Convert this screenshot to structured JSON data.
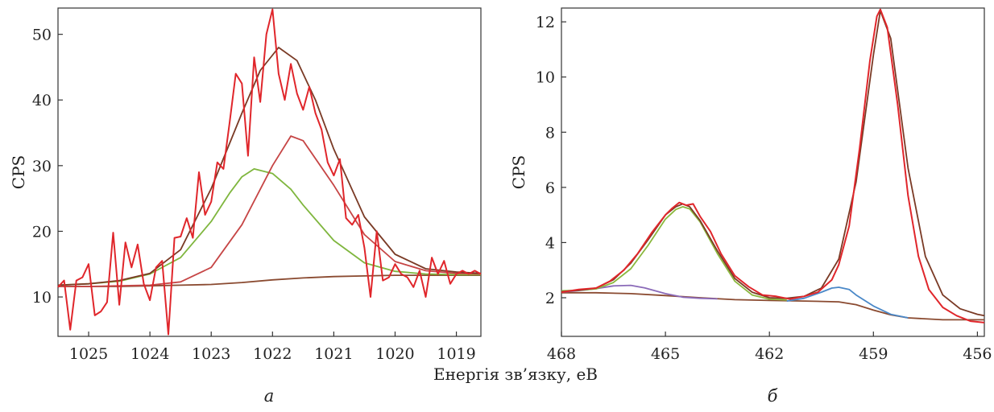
{
  "shared_xlabel": "Енергія зв’язку, еВ",
  "chart_data": [
    {
      "type": "line",
      "panel_label": "а",
      "xlabel": "",
      "ylabel": "CPS",
      "xlim": [
        1025.5,
        1018.6
      ],
      "ylim": [
        4,
        54
      ],
      "x_reversed": true,
      "xticks": [
        1025,
        1024,
        1023,
        1022,
        1021,
        1020,
        1019
      ],
      "yticks": [
        10,
        20,
        30,
        40,
        50
      ],
      "series": [
        {
          "color": "#8a4a30",
          "x": [
            1025.5,
            1025.0,
            1024.5,
            1024.0,
            1023.5,
            1023.0,
            1022.5,
            1022.0,
            1021.5,
            1021.0,
            1020.5,
            1020.0,
            1019.5,
            1019.0,
            1018.6
          ],
          "y": [
            11.6,
            11.6,
            11.6,
            11.7,
            11.8,
            11.9,
            12.2,
            12.6,
            12.9,
            13.1,
            13.2,
            13.3,
            13.3,
            13.3,
            13.3
          ]
        },
        {
          "color": "#7fb63e",
          "x": [
            1025.5,
            1025.0,
            1024.5,
            1024.0,
            1023.5,
            1023.0,
            1022.7,
            1022.5,
            1022.3,
            1022.0,
            1021.7,
            1021.5,
            1021.0,
            1020.5,
            1020.0,
            1019.5,
            1019.0,
            1018.6
          ],
          "y": [
            11.8,
            12.0,
            12.4,
            13.5,
            16.0,
            21.5,
            25.8,
            28.3,
            29.5,
            28.8,
            26.4,
            24.0,
            18.6,
            15.2,
            13.9,
            13.5,
            13.4,
            13.4
          ]
        },
        {
          "color": "#c64545",
          "x": [
            1025.5,
            1025.0,
            1024.5,
            1024.0,
            1023.5,
            1023.0,
            1022.5,
            1022.0,
            1021.7,
            1021.5,
            1021.0,
            1020.5,
            1020.0,
            1019.5,
            1019.0,
            1018.6
          ],
          "y": [
            11.6,
            11.6,
            11.7,
            11.8,
            12.3,
            14.5,
            21.0,
            30.0,
            34.5,
            33.8,
            27.0,
            19.5,
            15.4,
            14.0,
            13.6,
            13.5
          ]
        },
        {
          "color": "#7a3a25",
          "x": [
            1025.5,
            1025.0,
            1024.5,
            1024.0,
            1023.5,
            1023.0,
            1022.5,
            1022.2,
            1021.9,
            1021.6,
            1021.3,
            1021.0,
            1020.5,
            1020.0,
            1019.5,
            1019.0,
            1018.6
          ],
          "y": [
            11.8,
            12.0,
            12.5,
            13.6,
            17.2,
            26.5,
            38.0,
            44.5,
            48.0,
            46.0,
            40.0,
            32.5,
            22.2,
            16.5,
            14.3,
            13.8,
            13.6
          ]
        },
        {
          "color": "#e0262b",
          "x": [
            1025.5,
            1025.4,
            1025.3,
            1025.2,
            1025.1,
            1025.0,
            1024.9,
            1024.8,
            1024.7,
            1024.6,
            1024.5,
            1024.4,
            1024.3,
            1024.2,
            1024.1,
            1024.0,
            1023.9,
            1023.8,
            1023.7,
            1023.6,
            1023.5,
            1023.4,
            1023.3,
            1023.2,
            1023.1,
            1023.0,
            1022.9,
            1022.8,
            1022.7,
            1022.6,
            1022.5,
            1022.4,
            1022.3,
            1022.2,
            1022.1,
            1022.0,
            1021.9,
            1021.8,
            1021.7,
            1021.6,
            1021.5,
            1021.4,
            1021.3,
            1021.2,
            1021.1,
            1021.0,
            1020.9,
            1020.8,
            1020.7,
            1020.6,
            1020.5,
            1020.4,
            1020.3,
            1020.2,
            1020.1,
            1020.0,
            1019.9,
            1019.8,
            1019.7,
            1019.6,
            1019.5,
            1019.4,
            1019.3,
            1019.2,
            1019.1,
            1019.0,
            1018.9,
            1018.8,
            1018.7,
            1018.6
          ],
          "y": [
            11.5,
            12.5,
            5.0,
            12.5,
            13.0,
            15.0,
            7.2,
            7.8,
            9.2,
            19.8,
            8.8,
            18.3,
            14.5,
            18.0,
            12.0,
            9.5,
            14.5,
            15.5,
            4.3,
            19.0,
            19.2,
            22.0,
            19.0,
            29.0,
            22.5,
            24.5,
            30.5,
            29.5,
            36.5,
            44.0,
            42.5,
            31.5,
            46.5,
            39.7,
            50.0,
            53.8,
            44.0,
            40.0,
            45.5,
            41.0,
            38.5,
            42.0,
            38.0,
            35.5,
            30.5,
            28.5,
            31.0,
            22.0,
            21.0,
            22.5,
            17.5,
            10.0,
            20.0,
            12.5,
            13.0,
            15.0,
            13.5,
            13.0,
            11.5,
            14.0,
            10.0,
            16.0,
            13.5,
            15.5,
            12.0,
            13.5,
            14.0,
            13.5,
            14.0,
            13.5
          ]
        }
      ]
    },
    {
      "type": "line",
      "panel_label": "б",
      "xlabel": "",
      "ylabel": "CPS",
      "xlim": [
        468,
        455.8
      ],
      "ylim": [
        0.6,
        12.5
      ],
      "x_reversed": true,
      "xticks": [
        468,
        465,
        462,
        459,
        456
      ],
      "yticks": [
        2,
        4,
        6,
        8,
        10,
        12
      ],
      "series": [
        {
          "color": "#8a4a30",
          "x": [
            468,
            467,
            466,
            465,
            464,
            463,
            462,
            461,
            460,
            459.5,
            459,
            458.5,
            458,
            457,
            456,
            455.8
          ],
          "y": [
            2.18,
            2.18,
            2.15,
            2.08,
            2.0,
            1.93,
            1.9,
            1.88,
            1.85,
            1.75,
            1.55,
            1.38,
            1.27,
            1.2,
            1.2,
            1.2
          ]
        },
        {
          "color": "#8a6ab8",
          "x": [
            468,
            467.5,
            467,
            466.5,
            466,
            465.6,
            465,
            464.5,
            464,
            463.5
          ],
          "y": [
            2.2,
            2.26,
            2.33,
            2.43,
            2.45,
            2.36,
            2.15,
            2.02,
            1.98,
            1.96
          ]
        },
        {
          "color": "#4a88c8",
          "x": [
            461.5,
            461,
            460.5,
            460.2,
            460,
            459.7,
            459.5,
            459,
            458.5,
            458
          ],
          "y": [
            1.88,
            1.98,
            2.2,
            2.35,
            2.38,
            2.3,
            2.1,
            1.7,
            1.4,
            1.27
          ]
        },
        {
          "color": "#8ab83e",
          "x": [
            468,
            467.5,
            467,
            466.5,
            466,
            465.5,
            465,
            464.7,
            464.5,
            464.3,
            464,
            463.5,
            463,
            462.5,
            462,
            461.5
          ],
          "y": [
            2.25,
            2.27,
            2.32,
            2.55,
            3.05,
            3.9,
            4.85,
            5.2,
            5.3,
            5.22,
            4.75,
            3.6,
            2.6,
            2.1,
            1.95,
            1.92
          ]
        },
        {
          "color": "#7a3a25",
          "x": [
            468,
            467.5,
            467,
            466.5,
            466,
            465.5,
            465,
            464.7,
            464.5,
            464.3,
            464,
            463.5,
            463,
            462.5,
            462,
            461.5,
            461,
            460.5,
            460,
            459.5,
            459,
            458.8,
            458.5,
            458,
            457.5,
            457,
            456.5,
            456,
            455.8
          ],
          "y": [
            2.22,
            2.27,
            2.35,
            2.65,
            3.25,
            4.1,
            5.0,
            5.3,
            5.4,
            5.3,
            4.8,
            3.7,
            2.7,
            2.2,
            2.0,
            1.98,
            2.05,
            2.35,
            3.4,
            6.2,
            10.8,
            12.4,
            11.4,
            6.7,
            3.5,
            2.1,
            1.6,
            1.4,
            1.35
          ]
        },
        {
          "color": "#e0262b",
          "x": [
            468,
            467.5,
            467,
            466.6,
            466.2,
            465.8,
            465.4,
            465,
            464.8,
            464.6,
            464.4,
            464.2,
            464,
            463.7,
            463.4,
            463,
            462.6,
            462.2,
            461.8,
            461.4,
            461,
            460.6,
            460.2,
            460,
            459.7,
            459.4,
            459.1,
            458.9,
            458.8,
            458.6,
            458.3,
            458,
            457.7,
            457.4,
            457,
            456.6,
            456.2,
            455.8
          ],
          "y": [
            2.2,
            2.3,
            2.35,
            2.6,
            3.0,
            3.6,
            4.35,
            5.0,
            5.25,
            5.45,
            5.35,
            5.4,
            4.95,
            4.4,
            3.6,
            2.8,
            2.4,
            2.1,
            2.05,
            1.95,
            2.05,
            2.2,
            2.65,
            3.2,
            4.6,
            7.4,
            10.6,
            12.2,
            12.45,
            11.8,
            9.0,
            5.7,
            3.5,
            2.3,
            1.65,
            1.35,
            1.15,
            1.1
          ]
        }
      ]
    }
  ]
}
